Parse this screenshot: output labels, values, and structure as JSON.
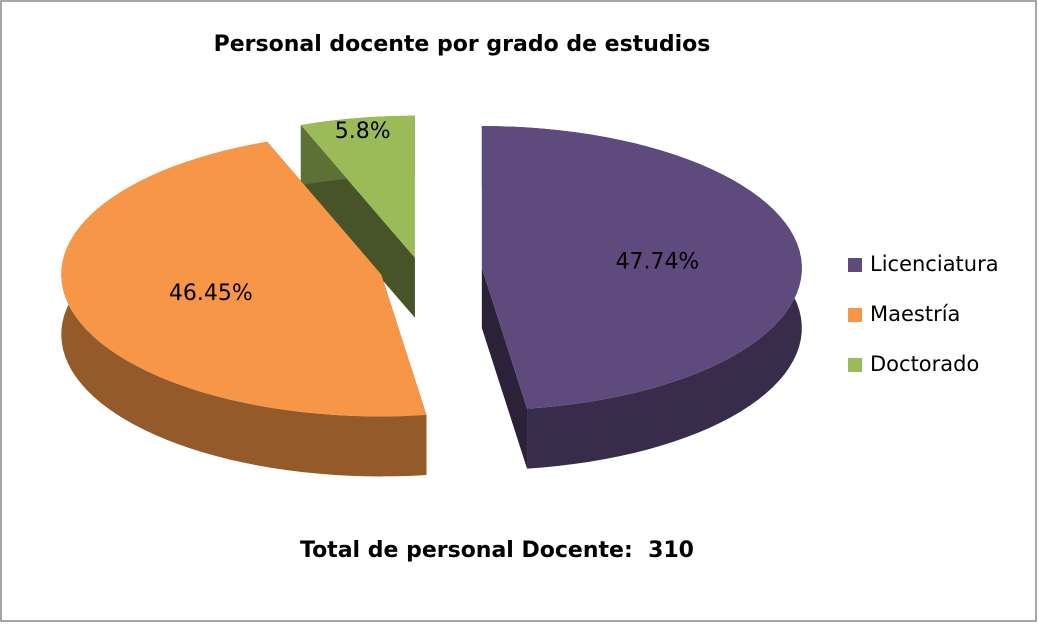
{
  "chart_data": {
    "type": "pie",
    "title": "Personal docente por grado de estudios",
    "categories": [
      "Licenciatura",
      "Maestría",
      "Doctorado"
    ],
    "values": [
      47.74,
      46.45,
      5.8
    ],
    "value_labels": [
      "47.74%",
      "46.45%",
      "5.8%"
    ],
    "colors": [
      "#5f4a7d",
      "#f79646",
      "#9bbb59"
    ],
    "legend": "right",
    "annotation": "Total de personal Docente:  310"
  }
}
